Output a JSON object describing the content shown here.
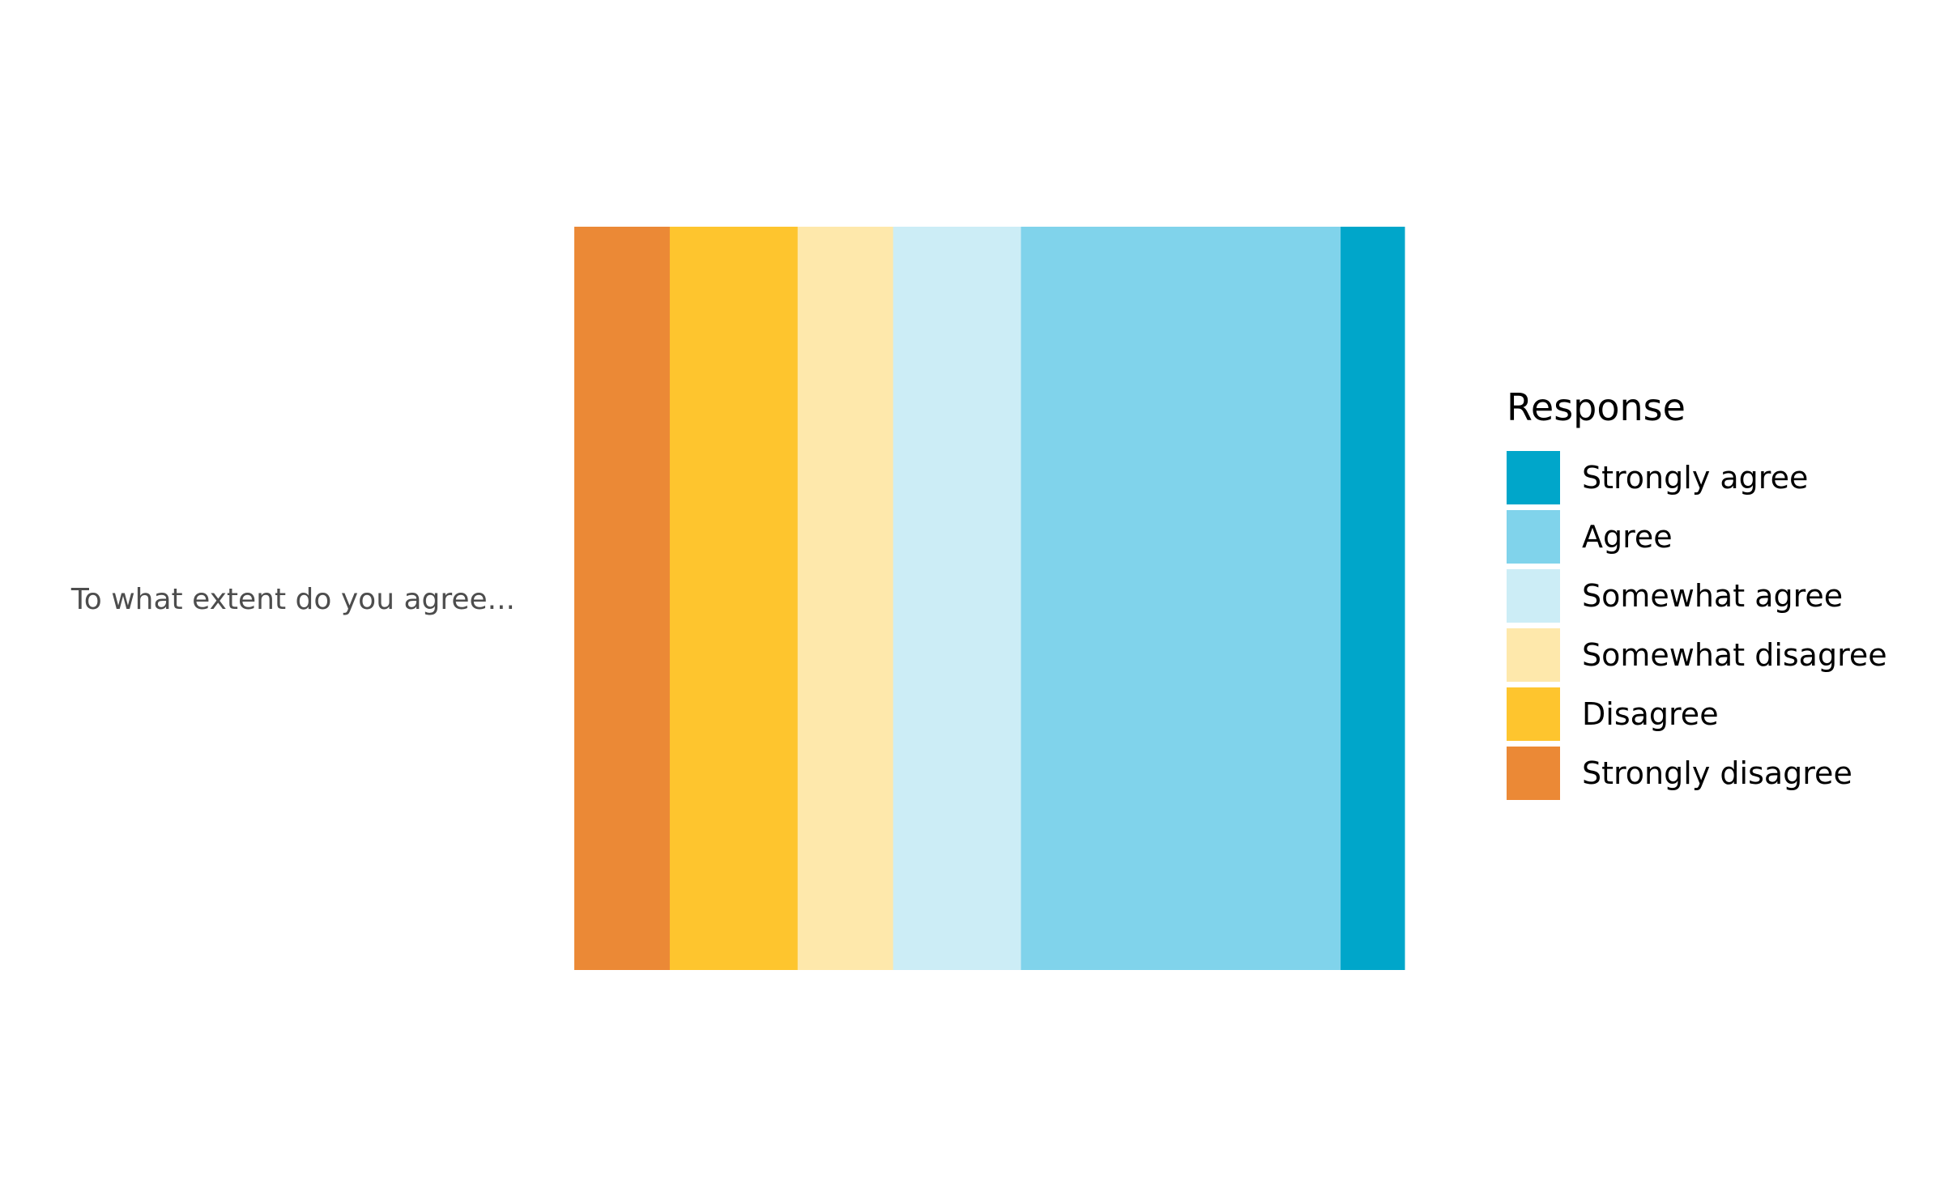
{
  "chart_data": {
    "type": "bar",
    "orientation": "horizontal",
    "stacked": true,
    "normalized": true,
    "categories": [
      "To what extent do you agree..."
    ],
    "series": [
      {
        "name": "Strongly disagree",
        "values": [
          11.5
        ],
        "color": "#EB8936"
      },
      {
        "name": "Disagree",
        "values": [
          15.4
        ],
        "color": "#FEC52E"
      },
      {
        "name": "Somewhat disagree",
        "values": [
          11.5
        ],
        "color": "#FEE8AB"
      },
      {
        "name": "Somewhat agree",
        "values": [
          15.4
        ],
        "color": "#CCEDF6"
      },
      {
        "name": "Agree",
        "values": [
          38.5
        ],
        "color": "#80D3EB"
      },
      {
        "name": "Strongly agree",
        "values": [
          7.7
        ],
        "color": "#00A6CA"
      }
    ],
    "legend": {
      "title": "Response",
      "position": "right",
      "order": [
        "Strongly agree",
        "Agree",
        "Somewhat agree",
        "Somewhat disagree",
        "Disagree",
        "Strongly disagree"
      ]
    },
    "xlim": [
      0,
      100
    ],
    "grid": false,
    "axes_visible": false,
    "title": "",
    "xlabel": "",
    "ylabel": ""
  }
}
